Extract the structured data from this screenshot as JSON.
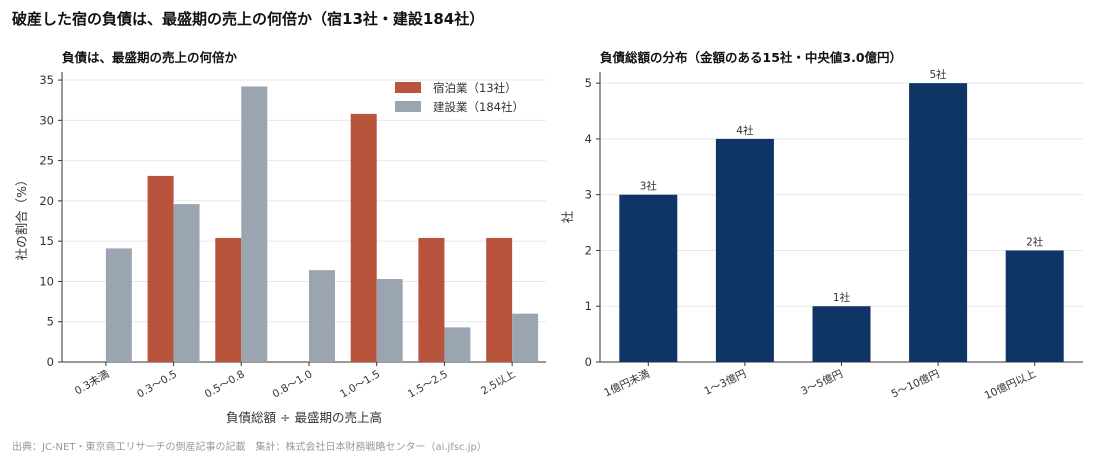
{
  "suptitle": "破産した宿の負債は、最盛期の売上の何倍か（宿13社・建設184社）",
  "source": "出典：JC-NET・東京商工リサーチの倒産記事の記載　集計：株式会社日本財務戦略センター（ai.jfsc.jp）",
  "colors": {
    "accent": "#b8533c",
    "gray": "#9aa5b1",
    "navy": "#0f3466"
  },
  "chart_data": [
    {
      "type": "bar",
      "title": "負債は、最盛期の売上の何倍か",
      "xlabel": "負債総額 ÷ 最盛期の売上高",
      "ylabel": "社の割合（%）",
      "categories": [
        "0.3未満",
        "0.3〜0.5",
        "0.5〜0.8",
        "0.8〜1.0",
        "1.0〜1.5",
        "1.5〜2.5",
        "2.5以上"
      ],
      "series": [
        {
          "name": "宿泊業（13社）",
          "color": "#b8533c",
          "values": [
            0,
            23.1,
            15.4,
            0,
            30.8,
            15.4,
            15.4
          ]
        },
        {
          "name": "建設業（184社）",
          "color": "#9aa5b1",
          "values": [
            14.1,
            19.6,
            34.2,
            11.4,
            10.3,
            4.3,
            6.0
          ]
        }
      ],
      "ylim": [
        0,
        36
      ],
      "yticks": [
        0,
        5,
        10,
        15,
        20,
        25,
        30,
        35
      ],
      "grid": true,
      "legend": "top-right"
    },
    {
      "type": "bar",
      "title": "負債総額の分布（金額のある15社・中央値3.0億円）",
      "xlabel": "",
      "ylabel": "社",
      "categories": [
        "1億円未満",
        "1〜3億円",
        "3〜5億円",
        "5〜10億円",
        "10億円以上"
      ],
      "values": [
        3,
        4,
        1,
        5,
        2
      ],
      "data_labels": [
        "3社",
        "4社",
        "1社",
        "5社",
        "2社"
      ],
      "color": "#0f3466",
      "ylim": [
        0,
        5.2
      ],
      "yticks": [
        0,
        1,
        2,
        3,
        4,
        5
      ],
      "grid": true
    }
  ]
}
